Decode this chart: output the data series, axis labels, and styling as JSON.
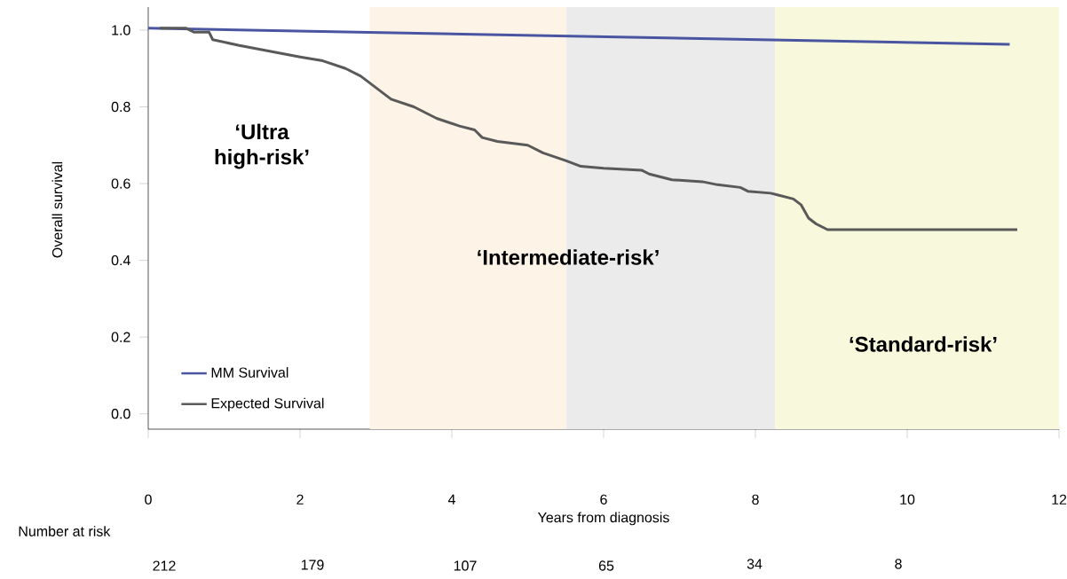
{
  "chart_data": {
    "type": "line",
    "xlabel": "Years from diagnosis",
    "ylabel": "Overall survival",
    "xlim": [
      0,
      12
    ],
    "xticks": [
      0,
      2,
      4,
      6,
      8,
      10,
      12
    ],
    "ylim": [
      -0.04,
      1.06
    ],
    "yticks": [
      {
        "value": 0,
        "label": "0.0"
      },
      {
        "value": 0.2,
        "label": "0.2"
      },
      {
        "value": 0.4,
        "label": "0.4"
      },
      {
        "value": 0.6,
        "label": "0.6"
      },
      {
        "value": 0.8,
        "label": "0.8"
      },
      {
        "value": 1,
        "label": "1.0"
      }
    ],
    "series": [
      {
        "name": "MM Survival",
        "color": "#4a55a2",
        "x": [
          0,
          11.35
        ],
        "values": [
          1.005,
          0.963
        ]
      },
      {
        "name": "Expected Survival",
        "color": "#595959",
        "x": [
          0.15,
          0.5,
          0.6,
          0.8,
          0.85,
          1.2,
          1.6,
          2.0,
          2.3,
          2.6,
          2.8,
          3.0,
          3.2,
          3.5,
          3.8,
          4.1,
          4.3,
          4.4,
          4.6,
          5.0,
          5.2,
          5.5,
          5.7,
          6.0,
          6.5,
          6.6,
          6.9,
          7.3,
          7.5,
          7.8,
          7.9,
          8.2,
          8.3,
          8.5,
          8.6,
          8.7,
          8.8,
          8.95,
          11.45
        ],
        "values": [
          1.005,
          1.005,
          0.995,
          0.995,
          0.975,
          0.96,
          0.945,
          0.93,
          0.92,
          0.9,
          0.88,
          0.85,
          0.82,
          0.8,
          0.77,
          0.75,
          0.74,
          0.72,
          0.71,
          0.7,
          0.68,
          0.66,
          0.645,
          0.64,
          0.635,
          0.625,
          0.61,
          0.605,
          0.597,
          0.59,
          0.58,
          0.575,
          0.57,
          0.56,
          0.545,
          0.51,
          0.495,
          0.48,
          0.48
        ]
      }
    ],
    "bands": [
      {
        "axis": "x",
        "from": 2.92,
        "to": 5.51,
        "color": "#fdf3e7"
      },
      {
        "axis": "x",
        "from": 5.51,
        "to": 8.26,
        "color": "#ebebeb"
      },
      {
        "axis": "x",
        "from": 8.26,
        "to": 12,
        "color": "#f8f8dc"
      }
    ],
    "legend": "bottom left",
    "marker": "none",
    "line_style": "solid",
    "grid": false,
    "annotations": [
      "‘Ultra high-risk’",
      "‘Intermediate-risk’",
      "‘Standard-risk’",
      "Number at risk",
      "212",
      "179",
      "107",
      "65",
      "34",
      "8"
    ]
  }
}
